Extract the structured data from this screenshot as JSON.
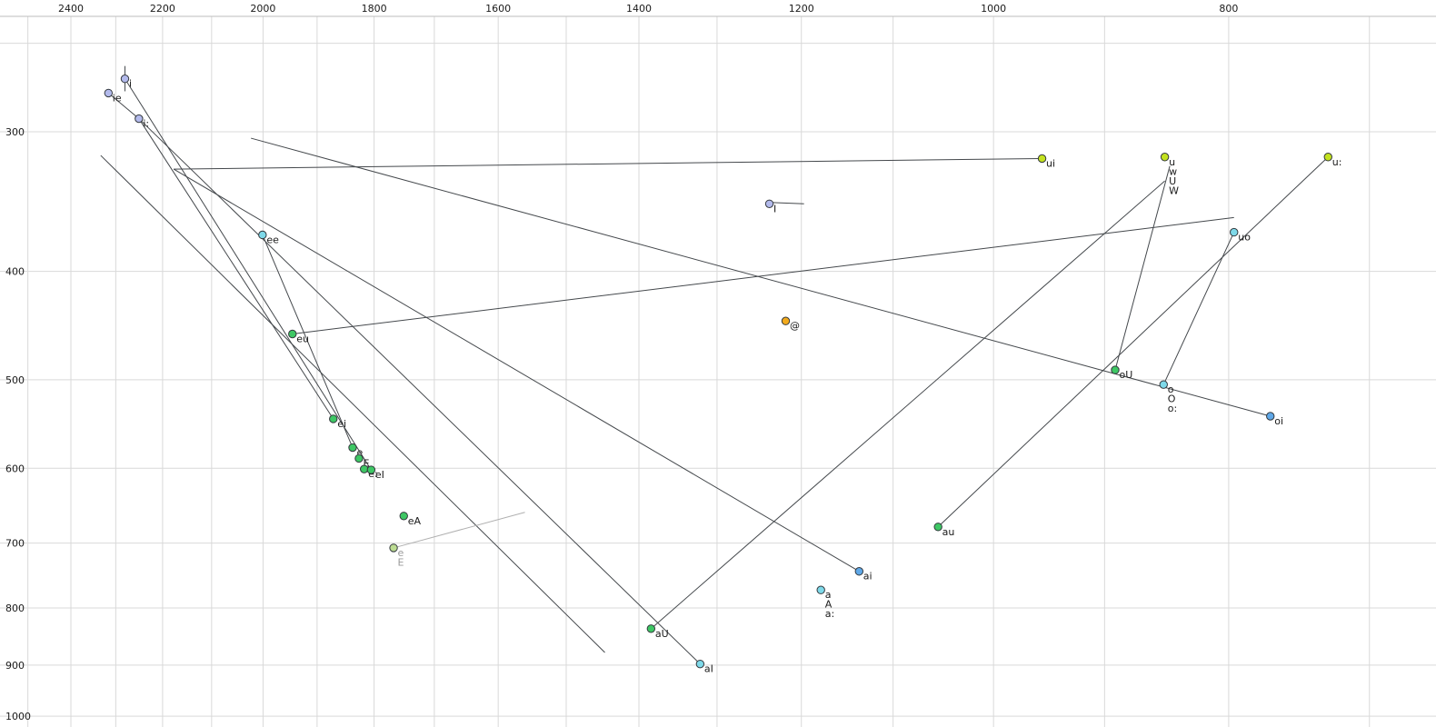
{
  "palette": {
    "periwinkle": "#b3baec",
    "cyan": "#7ed9e9",
    "green": "#3ec764",
    "yellowgreen": "#c3e21f",
    "orange": "#f2aa1d",
    "blue": "#5fa8e8",
    "muted": "#bcdc92",
    "point_stroke": "#33383d",
    "line": "#44484c",
    "muted_line": "#b0b0b0",
    "grid": "#d9d9d9",
    "border": "#bdbdbd",
    "label": "#1a1a1a",
    "muted_label": "#9a9a9a",
    "background": "#ffffff"
  },
  "chart_data": {
    "type": "scatter",
    "description": "Vowel formant chart: F2 (Hz, log scale, reversed) on x-axis, F1 (Hz, log scale, increasing downward) on y-axis; diphthong trajectories drawn as straight lines",
    "x_ticks": [
      2400,
      2200,
      2000,
      1800,
      1600,
      1400,
      1200,
      1000,
      800
    ],
    "y_ticks": [
      300,
      400,
      500,
      600,
      700,
      800,
      900,
      1000
    ],
    "x_grid_max": 2500,
    "x_grid_min": 700,
    "x_grid_step": 100,
    "y_grid": [
      250,
      300,
      400,
      500,
      600,
      700,
      800,
      900,
      1000
    ],
    "x_scale": "log-reversed",
    "y_scale": "log-down",
    "points": [
      {
        "labels": [
          "ie"
        ],
        "f2": 2316,
        "f1": 277,
        "color": "periwinkle"
      },
      {
        "labels": [
          "i"
        ],
        "f2": 2280,
        "f1": 269,
        "color": "periwinkle"
      },
      {
        "labels": [
          "i:"
        ],
        "f2": 2250,
        "f1": 292,
        "color": "periwinkle"
      },
      {
        "labels": [
          "ee"
        ],
        "f2": 2001,
        "f1": 371,
        "color": "cyan"
      },
      {
        "labels": [
          "eu"
        ],
        "f2": 1945,
        "f1": 455,
        "color": "green"
      },
      {
        "labels": [
          "ei"
        ],
        "f2": 1871,
        "f1": 542,
        "color": "green"
      },
      {
        "labels": [
          "e"
        ],
        "f2": 1837,
        "f1": 575,
        "color": "green"
      },
      {
        "labels": [
          "E"
        ],
        "f2": 1826,
        "f1": 588,
        "color": "green"
      },
      {
        "labels": [
          "e:"
        ],
        "f2": 1817,
        "f1": 601,
        "color": "green"
      },
      {
        "labels": [
          "eI"
        ],
        "f2": 1805,
        "f1": 602,
        "color": "green"
      },
      {
        "labels": [
          "eA"
        ],
        "f2": 1750,
        "f1": 662,
        "color": "green"
      },
      {
        "labels": [
          "e",
          "E"
        ],
        "f2": 1767,
        "f1": 707,
        "color": "muted",
        "muted": true
      },
      {
        "labels": [
          "aU"
        ],
        "f2": 1384,
        "f1": 835,
        "color": "green"
      },
      {
        "labels": [
          "aI"
        ],
        "f2": 1321,
        "f1": 898,
        "color": "cyan"
      },
      {
        "labels": [
          "ai"
        ],
        "f2": 1136,
        "f1": 742,
        "color": "blue"
      },
      {
        "labels": [
          "a",
          "A",
          "a:"
        ],
        "f2": 1178,
        "f1": 771,
        "color": "cyan"
      },
      {
        "labels": [
          "@"
        ],
        "f2": 1218,
        "f1": 443,
        "color": "orange"
      },
      {
        "labels": [
          "I"
        ],
        "f2": 1237,
        "f1": 348,
        "color": "periwinkle"
      },
      {
        "labels": [
          "ui"
        ],
        "f2": 955,
        "f1": 317,
        "color": "yellowgreen"
      },
      {
        "labels": [
          "u",
          "w",
          "U",
          "W"
        ],
        "f2": 850,
        "f1": 316,
        "color": "yellowgreen"
      },
      {
        "labels": [
          "u:"
        ],
        "f2": 728,
        "f1": 316,
        "color": "yellowgreen"
      },
      {
        "labels": [
          "uo"
        ],
        "f2": 796,
        "f1": 369,
        "color": "cyan"
      },
      {
        "labels": [
          "oU"
        ],
        "f2": 891,
        "f1": 490,
        "color": "green"
      },
      {
        "labels": [
          "o",
          "O",
          "o:"
        ],
        "f2": 851,
        "f1": 505,
        "color": "cyan"
      },
      {
        "labels": [
          "oi"
        ],
        "f2": 769,
        "f1": 539,
        "color": "blue"
      },
      {
        "labels": [
          "au"
        ],
        "f2": 1054,
        "f1": 677,
        "color": "green"
      }
    ],
    "lines": [
      {
        "name": "ui-trajectory",
        "from": [
          2177,
          324
        ],
        "to": [
          955,
          317
        ]
      },
      {
        "name": "oi-trajectory",
        "from": [
          2023,
          304
        ],
        "to": [
          769,
          539
        ]
      },
      {
        "name": "left-long-trajectory",
        "from": [
          2333,
          315
        ],
        "to": [
          1446,
          877
        ]
      },
      {
        "name": "aI-trajectory",
        "from": [
          2250,
          292
        ],
        "to": [
          1321,
          898
        ]
      },
      {
        "name": "eI-trajectory",
        "from": [
          2280,
          269
        ],
        "to": [
          1805,
          602
        ]
      },
      {
        "name": "ei-trajectory",
        "from": [
          2250,
          292
        ],
        "to": [
          1871,
          542
        ]
      },
      {
        "name": "ee-trajectory",
        "from": [
          2001,
          371
        ],
        "to": [
          1837,
          575
        ]
      },
      {
        "name": "aU-trajectory",
        "from": [
          1384,
          835
        ],
        "to": [
          850,
          332
        ]
      },
      {
        "name": "oU-trajectory",
        "from": [
          891,
          490
        ],
        "to": [
          846,
          322
        ]
      },
      {
        "name": "au-trajectory",
        "from": [
          1054,
          677
        ],
        "to": [
          728,
          316
        ]
      },
      {
        "name": "ai-trajectory",
        "from": [
          1136,
          742
        ],
        "to": [
          2177,
          324
        ]
      },
      {
        "name": "eu-trajectory",
        "from": [
          1945,
          455
        ],
        "to": [
          796,
          358
        ]
      },
      {
        "name": "uo-trajectory",
        "from": [
          796,
          369
        ],
        "to": [
          851,
          505
        ]
      },
      {
        "name": "I-tick",
        "from": [
          1237,
          347
        ],
        "to": [
          1197,
          348
        ]
      },
      {
        "name": "i-tick",
        "from": [
          2280,
          276
        ],
        "to": [
          2280,
          262
        ]
      },
      {
        "name": "ie-connector",
        "from": [
          2316,
          277
        ],
        "to": [
          2250,
          292
        ]
      },
      {
        "name": "muted-trajectory",
        "from": [
          1767,
          707
        ],
        "to": [
          1560,
          657
        ],
        "muted": true
      }
    ]
  }
}
